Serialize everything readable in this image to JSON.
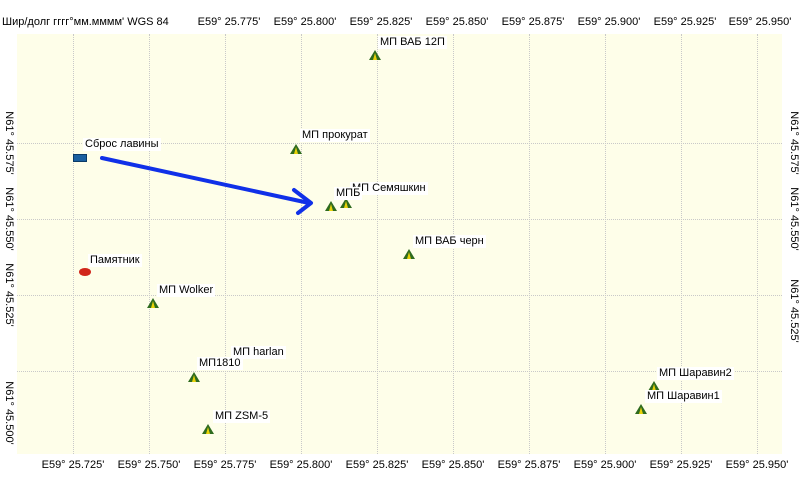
{
  "datum_label": "Шир/долг гггг°мм.мммм' WGS 84",
  "lon_ticks": [
    "E59° 25.725'",
    "E59° 25.750'",
    "E59° 25.775'",
    "E59° 25.800'",
    "E59° 25.825'",
    "E59° 25.850'",
    "E59° 25.875'",
    "E59° 25.900'",
    "E59° 25.925'",
    "E59° 25.950'"
  ],
  "top_lon_ticks": [
    "E59° 25.775'",
    "E59° 25.800'",
    "E59° 25.825'",
    "E59° 25.850'",
    "E59° 25.875'",
    "E59° 25.900'",
    "E59° 25.925'",
    "E59° 25.950'"
  ],
  "lat_ticks": [
    "N61° 45.575'",
    "N61° 45.550'",
    "N61° 45.525'",
    "N61° 45.500'"
  ],
  "waypoints": {
    "avalanche_drop": "Сброс лавины",
    "monument": "Памятник",
    "mp_vab_12p": "МП ВАБ 12П",
    "mp_prokurat": "МП прокурат",
    "mp_semyashkin": "МП Семяшкин",
    "mp_b": "МПБ",
    "mp_vab_chern": "МП ВАБ черн",
    "mp_wolker": "МП Wolker",
    "mp_harlan": "МП harlan",
    "mp_1810": "МП1810",
    "mp_zsm5": "МП ZSM-5",
    "mp_sharavin2": "МП Шаравин2",
    "mp_sharavin1": "МП Шаравин1"
  },
  "colors": {
    "background": "#fefee9",
    "grid": "#c9c9c9",
    "tent_fill": "#2e6b1e",
    "tent_highlight": "#e8d20a",
    "arrow": "#1030e8",
    "monument_marker": "#d1261b",
    "drop_marker": "#1a5fa0"
  },
  "icons": {
    "tent": "tent-icon",
    "monument": "red-oval-icon",
    "drop": "blue-rectangle-icon"
  }
}
